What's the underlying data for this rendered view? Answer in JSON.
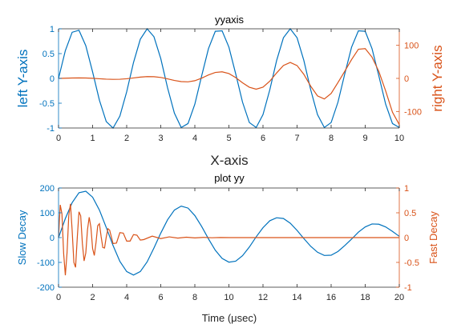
{
  "chart_data": [
    {
      "type": "line",
      "title": "yyaxis",
      "xlabel": "X-axis",
      "ylabel_left": "left Y-axis",
      "ylabel_right": "right Y-axis",
      "xlim": [
        0,
        10
      ],
      "ylim_left": [
        -1,
        1
      ],
      "ylim_right": [
        -150,
        150
      ],
      "xticks": [
        "0",
        "1",
        "2",
        "3",
        "4",
        "5",
        "6",
        "7",
        "8",
        "9",
        "10"
      ],
      "yticks_left": [
        "-1",
        "-0.5",
        "0",
        "0.5",
        "1"
      ],
      "yticks_right": [
        "-100",
        "0",
        "100"
      ],
      "grid": false,
      "colors": {
        "left": "#0072BD",
        "right": "#D95319"
      },
      "series": [
        {
          "axis": "left",
          "color": "#0072BD",
          "x": [
            0,
            0.2,
            0.4,
            0.6,
            0.8,
            1,
            1.2,
            1.4,
            1.6,
            1.8,
            2,
            2.2,
            2.4,
            2.6,
            2.8,
            3,
            3.2,
            3.4,
            3.6,
            3.8,
            4,
            4.2,
            4.4,
            4.6,
            4.8,
            5,
            5.2,
            5.4,
            5.6,
            5.8,
            6,
            6.2,
            6.4,
            6.6,
            6.8,
            7,
            7.2,
            7.4,
            7.6,
            7.8,
            8,
            8.2,
            8.4,
            8.6,
            8.8,
            9,
            9.2,
            9.4,
            9.6,
            9.8,
            10
          ],
          "y": [
            0,
            0.56,
            0.93,
            0.97,
            0.66,
            0.13,
            -0.44,
            -0.87,
            -1,
            -0.76,
            -0.27,
            0.32,
            0.79,
            1,
            0.84,
            0.4,
            -0.19,
            -0.7,
            -0.99,
            -0.91,
            -0.52,
            0.05,
            0.6,
            0.95,
            0.96,
            0.63,
            0.09,
            -0.48,
            -0.89,
            -0.99,
            -0.73,
            -0.23,
            0.36,
            0.82,
            1,
            0.82,
            0.36,
            -0.23,
            -0.73,
            -0.99,
            -0.89,
            -0.48,
            0.09,
            0.63,
            0.96,
            0.95,
            0.6,
            0.05,
            -0.52,
            -0.91,
            -0.99
          ]
        },
        {
          "axis": "right",
          "color": "#D95319",
          "x": [
            0,
            0.2,
            0.4,
            0.6,
            0.8,
            1,
            1.2,
            1.4,
            1.6,
            1.8,
            2,
            2.2,
            2.4,
            2.6,
            2.8,
            3,
            3.2,
            3.4,
            3.6,
            3.8,
            4,
            4.2,
            4.4,
            4.6,
            4.8,
            5,
            5.2,
            5.4,
            5.6,
            5.8,
            6,
            6.2,
            6.4,
            6.6,
            6.8,
            7,
            7.2,
            7.4,
            7.6,
            7.8,
            8,
            8.2,
            8.4,
            8.6,
            8.8,
            9,
            9.2,
            9.4,
            9.6,
            9.8,
            10
          ],
          "y": [
            0,
            0.67,
            1.24,
            1.47,
            1.18,
            0.26,
            -1.04,
            -2.25,
            -2.93,
            -2.56,
            -1.02,
            1.36,
            3.91,
            5.42,
            5.18,
            2.85,
            -1.39,
            -6.13,
            -9.72,
            -10.38,
            -6.99,
            0.81,
            10.44,
            17.92,
            19.92,
            14.56,
            2.5,
            -13.38,
            -26.71,
            -32.55,
            -26.41,
            -8.4,
            16.56,
            39.01,
            48.16,
            38.89,
            12.2,
            -23.49,
            -52.9,
            -62.14,
            -45.52,
            -12.57,
            21.52,
            57.11,
            88.21,
            90.1,
            64.28,
            21.05,
            -37.86,
            -102.36,
            -139.55
          ]
        }
      ]
    },
    {
      "type": "line",
      "title": "plot yy",
      "xlabel": "Time (μsec)",
      "ylabel_left": "Slow Decay",
      "ylabel_right": "Fast Decay",
      "xlim": [
        0,
        20
      ],
      "ylim_left": [
        -200,
        200
      ],
      "ylim_right": [
        -1,
        1
      ],
      "xticks": [
        "0",
        "2",
        "4",
        "6",
        "8",
        "10",
        "12",
        "14",
        "16",
        "18",
        "20"
      ],
      "yticks_left": [
        "-200",
        "-100",
        "0",
        "100",
        "200"
      ],
      "yticks_right": [
        "-1",
        "-0.5",
        "0",
        "0.5",
        "1"
      ],
      "grid": false,
      "colors": {
        "left": "#0072BD",
        "right": "#D95319"
      },
      "series": [
        {
          "axis": "left",
          "color": "#0072BD",
          "x": [
            0,
            0.4,
            0.8,
            1.2,
            1.6,
            2,
            2.4,
            2.8,
            3.2,
            3.6,
            4,
            4.4,
            4.8,
            5.2,
            5.6,
            6,
            6.4,
            6.8,
            7.2,
            7.6,
            8,
            8.4,
            8.8,
            9.2,
            9.6,
            10,
            10.4,
            10.8,
            11.2,
            11.6,
            12,
            12.4,
            12.8,
            13.2,
            13.6,
            14,
            14.4,
            14.8,
            15.2,
            15.6,
            16,
            16.4,
            16.8,
            17.2,
            17.6,
            18,
            18.4,
            18.8,
            19.2,
            19.6,
            20
          ],
          "y": [
            0,
            77,
            141,
            181,
            187,
            163,
            111,
            41,
            -32,
            -96,
            -137,
            -151,
            -137,
            -98,
            -42,
            18,
            72,
            111,
            127,
            119,
            89,
            45,
            -5,
            -51,
            -84,
            -99,
            -95,
            -73,
            -38,
            3,
            40,
            68,
            80,
            77,
            58,
            29,
            -4,
            -35,
            -59,
            -72,
            -71,
            -56,
            -32,
            -6,
            22,
            43,
            55,
            54,
            43,
            25,
            5
          ]
        },
        {
          "axis": "right",
          "color": "#D95319",
          "x": [
            0,
            0.1,
            0.2,
            0.3,
            0.4,
            0.5,
            0.6,
            0.7,
            0.8,
            0.9,
            1,
            1.1,
            1.2,
            1.3,
            1.4,
            1.5,
            1.6,
            1.7,
            1.8,
            1.9,
            2,
            2.1,
            2.2,
            2.3,
            2.4,
            2.5,
            2.6,
            2.7,
            2.8,
            2.9,
            3,
            3.2,
            3.4,
            3.6,
            3.8,
            4,
            4.2,
            4.4,
            4.6,
            4.8,
            5,
            5.5,
            6,
            6.5,
            7,
            7.5,
            8,
            8.5,
            9,
            9.5,
            10,
            11,
            12,
            13,
            14,
            15,
            16,
            17,
            18,
            19,
            20
          ],
          "y": [
            0,
            0.66,
            0.48,
            -0.32,
            -0.76,
            -0.3,
            0.44,
            0.68,
            0.14,
            -0.5,
            -0.6,
            0,
            0.52,
            0.44,
            -0.12,
            -0.47,
            -0.31,
            0.16,
            0.41,
            0.21,
            -0.22,
            -0.36,
            -0.1,
            0.24,
            0.28,
            0.02,
            -0.2,
            -0.21,
            0.01,
            0.18,
            0.15,
            -0.12,
            -0.11,
            0.1,
            0.09,
            -0.07,
            -0.07,
            0.06,
            0.05,
            -0.05,
            -0.04,
            0.03,
            -0.02,
            0.015,
            -0.01,
            0.008,
            -0.006,
            0.004,
            -0.003,
            0.002,
            0,
            0,
            0,
            0,
            0,
            0,
            0,
            0,
            0,
            0,
            0
          ]
        }
      ]
    }
  ]
}
